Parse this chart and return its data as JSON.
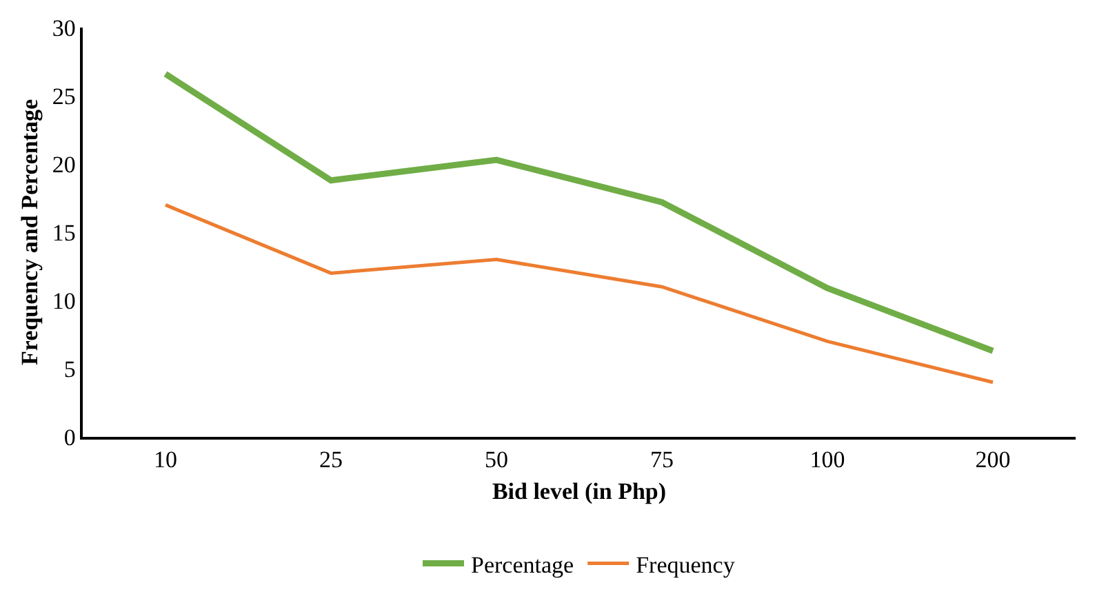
{
  "chart_data": {
    "type": "line",
    "xlabel": "Bid level (in Php)",
    "ylabel": "Frequency and Percentage",
    "categories": [
      "10",
      "25",
      "50",
      "75",
      "100",
      "200"
    ],
    "series": [
      {
        "name": "Percentage",
        "color": "#70ad47",
        "values": [
          26.6,
          18.8,
          20.3,
          17.2,
          10.9,
          6.3
        ]
      },
      {
        "name": "Frequency",
        "color": "#ed7d31",
        "values": [
          17,
          12,
          13,
          11,
          7,
          4
        ]
      }
    ],
    "ylim": [
      0,
      30
    ],
    "yticks": [
      0,
      5,
      10,
      15,
      20,
      25,
      30
    ],
    "grid": false,
    "legend": "bottom",
    "marker": "none",
    "line_style": "solid"
  }
}
